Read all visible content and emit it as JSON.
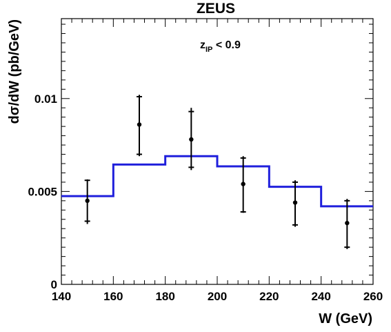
{
  "chart_data": {
    "type": "scatter",
    "title": "ZEUS",
    "xlabel": "W (GeV)",
    "ylabel": "dσ/dW (pb/GeV)",
    "xlim": [
      140,
      260
    ],
    "ylim": [
      0,
      0.0143
    ],
    "x_ticks": [
      140,
      160,
      180,
      200,
      220,
      240,
      260
    ],
    "y_ticks": [
      0,
      0.005,
      0.01
    ],
    "y_tick_labels": [
      "0",
      "0.005",
      "0.01"
    ],
    "annotation": {
      "main": "z",
      "sub": "IP",
      "rest": " < 0.9"
    },
    "grid": false,
    "colors": {
      "data": "#000000",
      "model": "#1f1fdc"
    },
    "series": [
      {
        "type": "scatter_errorbar",
        "x": [
          150,
          170,
          190,
          210,
          230,
          250
        ],
        "y": [
          0.0045,
          0.0086,
          0.0078,
          0.0054,
          0.0044,
          0.0033
        ],
        "err_low": [
          0.00125,
          0.0017,
          0.00165,
          0.00155,
          0.0013,
          0.0014
        ],
        "err_high": [
          0.00115,
          0.0016,
          0.0017,
          0.0015,
          0.0012,
          0.0013
        ],
        "inner_err_low": [
          0.0011,
          0.0016,
          0.0015,
          0.0015,
          0.0012,
          0.0013
        ],
        "inner_err_high": [
          0.0011,
          0.0015,
          0.0015,
          0.0014,
          0.0011,
          0.0012
        ]
      },
      {
        "type": "step",
        "bins": [
          [
            140,
            160
          ],
          [
            160,
            180
          ],
          [
            180,
            200
          ],
          [
            200,
            220
          ],
          [
            220,
            240
          ],
          [
            240,
            260
          ]
        ],
        "values": [
          0.00475,
          0.00645,
          0.0069,
          0.00635,
          0.00525,
          0.0042
        ]
      }
    ]
  }
}
